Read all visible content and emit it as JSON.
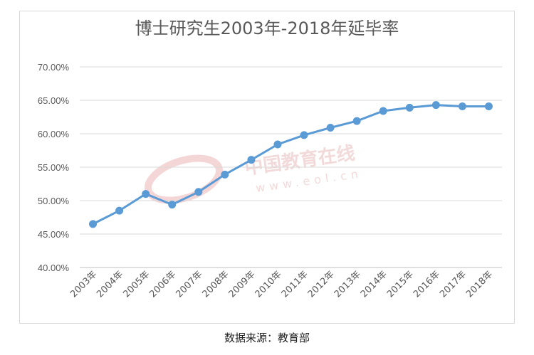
{
  "chart_data": {
    "type": "line",
    "title": "博士研究生2003年-2018年延毕率",
    "categories": [
      "2003年",
      "2004年",
      "2005年",
      "2006年",
      "2007年",
      "2008年",
      "2009年",
      "2010年",
      "2011年",
      "2012年",
      "2013年",
      "2014年",
      "2015年",
      "2016年",
      "2017年",
      "2018年"
    ],
    "values": [
      46.5,
      48.5,
      51.0,
      49.4,
      51.3,
      53.9,
      56.1,
      58.4,
      59.8,
      60.9,
      61.9,
      63.4,
      63.9,
      64.3,
      64.1,
      64.1
    ],
    "y_ticks": [
      "40.00%",
      "45.00%",
      "50.00%",
      "55.00%",
      "60.00%",
      "65.00%",
      "70.00%"
    ],
    "ylim": [
      40,
      70
    ],
    "grid": true,
    "legend": "none",
    "line_color": "#5b9bd5",
    "watermark": {
      "text": "中国教育在线",
      "url": "www.eol.cn"
    }
  },
  "footer": {
    "source": "数据来源：教育部"
  }
}
